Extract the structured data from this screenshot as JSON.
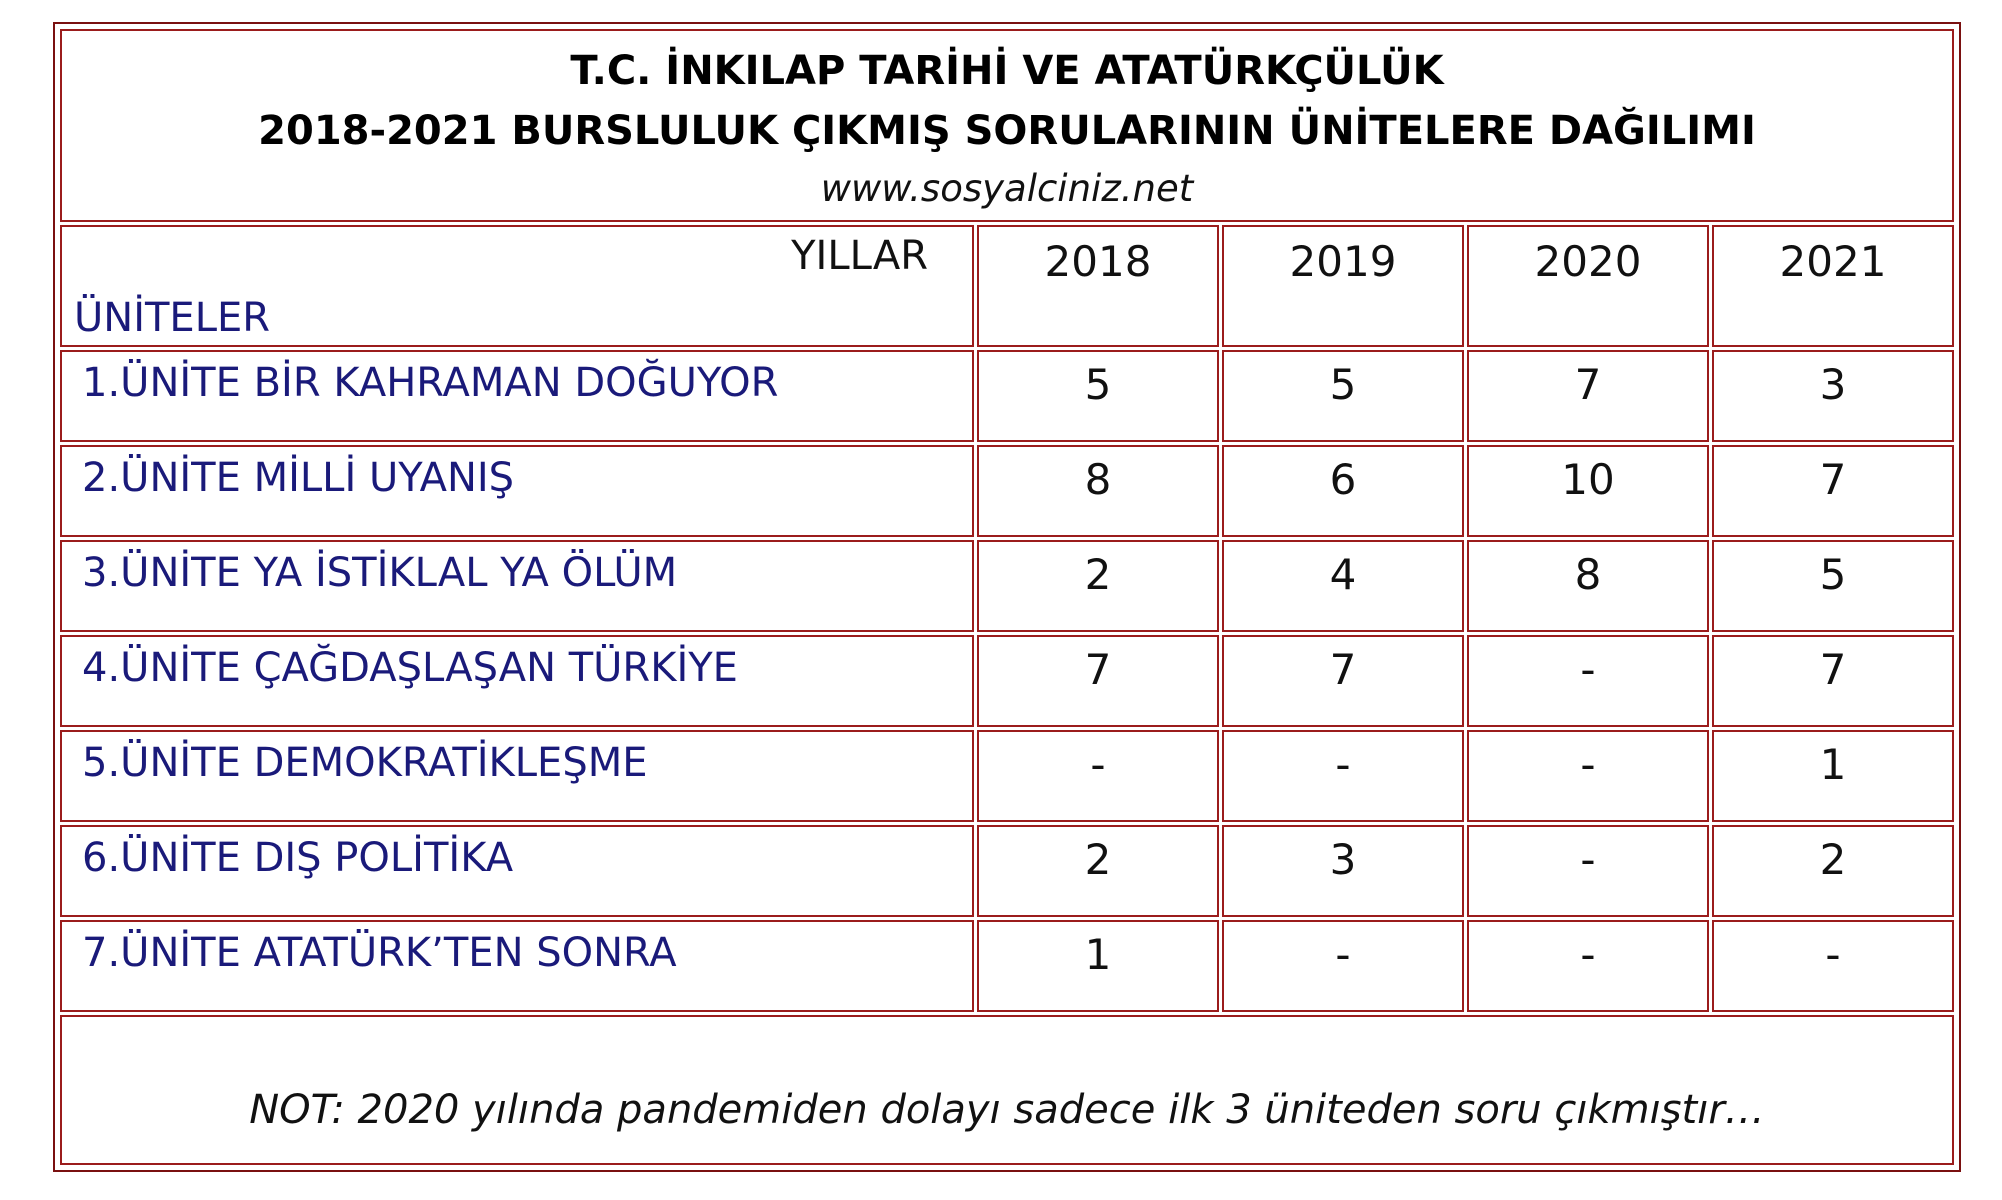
{
  "title": {
    "line1": "T.C. İNKILAP TARİHİ VE ATATÜRKÇÜLÜK",
    "line2": "2018-2021 BURSLULUK ÇIKMIŞ SORULARININ ÜNİTELERE DAĞILIMI",
    "website": "www.sosyalciniz.net"
  },
  "header": {
    "years_label": "YILLAR",
    "units_label": "ÜNİTELER",
    "years": [
      "2018",
      "2019",
      "2020",
      "2021"
    ]
  },
  "rows": [
    {
      "unit": "1.ÜNİTE BİR KAHRAMAN DOĞUYOR",
      "values": [
        "5",
        "5",
        "7",
        "3"
      ]
    },
    {
      "unit": "2.ÜNİTE MİLLİ UYANIŞ",
      "values": [
        "8",
        "6",
        "10",
        "7"
      ]
    },
    {
      "unit": "3.ÜNİTE YA İSTİKLAL YA ÖLÜM",
      "values": [
        "2",
        "4",
        "8",
        "5"
      ]
    },
    {
      "unit": "4.ÜNİTE ÇAĞDAŞLAŞAN TÜRKİYE",
      "values": [
        "7",
        "7",
        "-",
        "7"
      ]
    },
    {
      "unit": "5.ÜNİTE DEMOKRATİKLEŞME",
      "values": [
        "-",
        "-",
        "-",
        "1"
      ]
    },
    {
      "unit": "6.ÜNİTE DIŞ POLİTİKA",
      "values": [
        "2",
        "3",
        "-",
        "2"
      ]
    },
    {
      "unit": "7.ÜNİTE ATATÜRK’TEN SONRA",
      "values": [
        "1",
        "-",
        "-",
        "-"
      ]
    }
  ],
  "note": "NOT: 2020 yılında pandemiden dolayı sadece ilk 3 üniteden soru çıkmıştır…",
  "colors": {
    "border": "#9b1c1c",
    "unit_text": "#1a1a7a"
  }
}
